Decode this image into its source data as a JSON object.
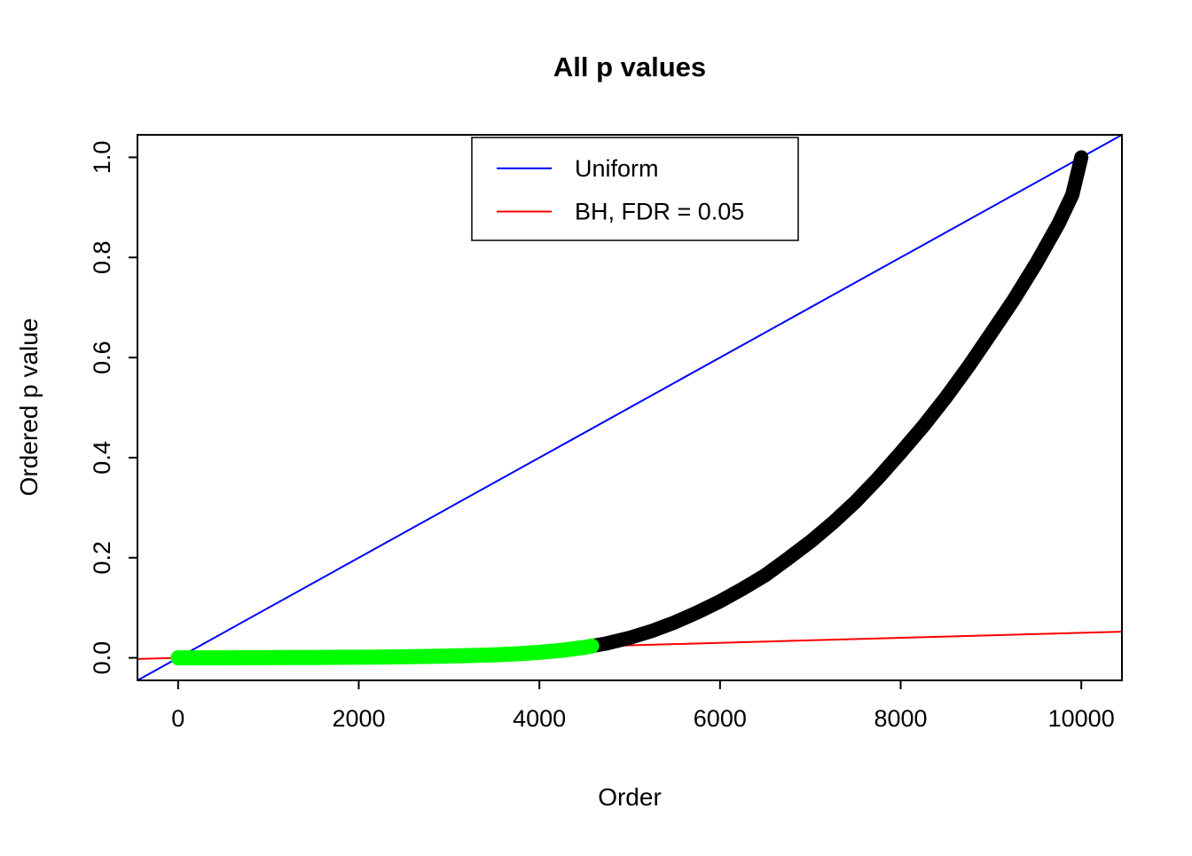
{
  "background": "#ffffff",
  "axes": {
    "x_ticks": [
      0,
      2000,
      4000,
      6000,
      8000,
      10000
    ],
    "x_tick_labels": [
      "0",
      "2000",
      "4000",
      "6000",
      "8000",
      "10000"
    ],
    "y_ticks": [
      0.0,
      0.2,
      0.4,
      0.6,
      0.8,
      1.0
    ],
    "y_tick_labels": [
      "0.0",
      "0.2",
      "0.4",
      "0.6",
      "0.8",
      "1.0"
    ]
  },
  "legend": {
    "items": [
      {
        "label": "Uniform",
        "color": "#0000ff"
      },
      {
        "label": "BH, FDR = 0.05",
        "color": "#ff0000"
      }
    ]
  },
  "chart_data": {
    "type": "line",
    "title": "All p values",
    "xlabel": "Order",
    "ylabel": "Ordered p value",
    "xlim": [
      0,
      10000
    ],
    "ylim": [
      0,
      1
    ],
    "grid": false,
    "legend_position": "top-center",
    "series": [
      {
        "name": "ordered-p-values",
        "type": "curve",
        "color": "#000000",
        "x": [
          0,
          250,
          500,
          750,
          1000,
          1250,
          1500,
          1750,
          2000,
          2250,
          2500,
          2750,
          3000,
          3250,
          3500,
          3750,
          4000,
          4250,
          4500,
          4750,
          5000,
          5250,
          5500,
          5750,
          6000,
          6250,
          6500,
          6750,
          7000,
          7250,
          7500,
          7750,
          8000,
          8250,
          8500,
          8750,
          9000,
          9250,
          9500,
          9750,
          9900,
          10000
        ],
        "y": [
          0.0,
          0.0,
          0.0001,
          0.0002,
          0.0003,
          0.0005,
          0.0007,
          0.001,
          0.0013,
          0.0017,
          0.0022,
          0.0028,
          0.0036,
          0.0046,
          0.006,
          0.008,
          0.011,
          0.015,
          0.021,
          0.029,
          0.04,
          0.054,
          0.071,
          0.091,
          0.113,
          0.138,
          0.165,
          0.198,
          0.232,
          0.27,
          0.312,
          0.359,
          0.41,
          0.463,
          0.52,
          0.582,
          0.648,
          0.715,
          0.788,
          0.868,
          0.925,
          1.0
        ],
        "note": "sorted p-values, plotted as a thick black curve rising from ~0 to 1"
      },
      {
        "name": "bh-significant-p-values",
        "type": "curve-overlay",
        "color": "#00ff00",
        "x_until": 4580,
        "note": "green overlay: ordered p-values below the BH threshold line (first ~4580 of 10000)"
      },
      {
        "name": "Uniform",
        "type": "abline",
        "color": "#0000ff",
        "intercept": 0,
        "slope": 0.0001,
        "note": "y = x / 10000"
      },
      {
        "name": "BH, FDR = 0.05",
        "type": "abline",
        "color": "#ff0000",
        "intercept": 0,
        "slope": 5e-06,
        "note": "y = 0.05 * x / 10000"
      }
    ]
  }
}
